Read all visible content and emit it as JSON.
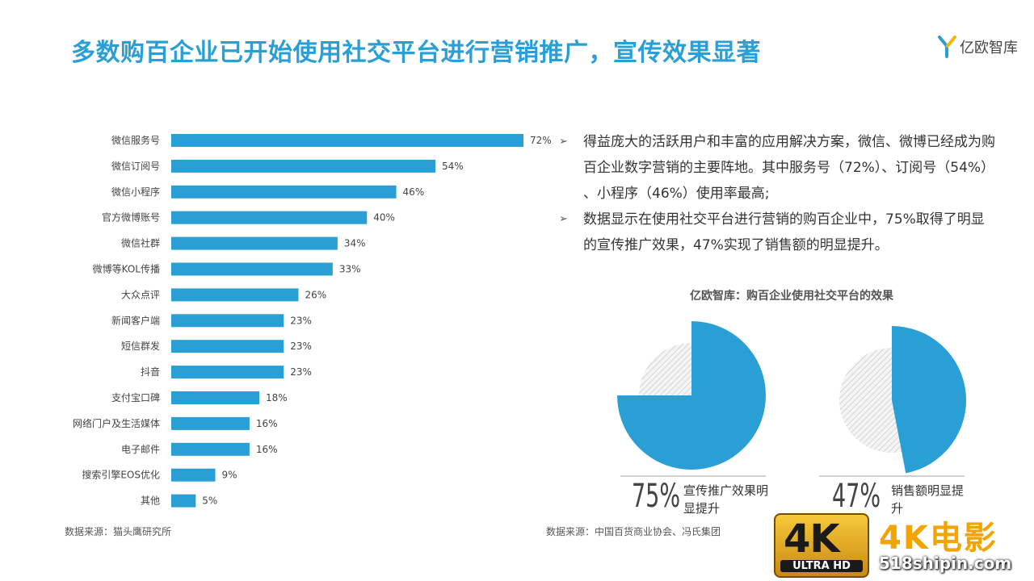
{
  "header": {
    "title": "多数购百企业已开始使用社交平台进行营销推广，宣传效果显著",
    "logo_text": "亿欧智库"
  },
  "colors": {
    "accent": "#2a9fd6",
    "bar": "#2a9fd6",
    "pie_rest": "#e6e6e6"
  },
  "chart_data": [
    {
      "type": "bar",
      "orientation": "horizontal",
      "categories": [
        "微信服务号",
        "微信订阅号",
        "微信小程序",
        "官方微博账号",
        "微信社群",
        "微博等KOL传播",
        "大众点评",
        "新闻客户端",
        "短信群发",
        "抖音",
        "支付宝口碑",
        "网络门户及生活媒体",
        "电子邮件",
        "搜索引擎EOS优化",
        "其他"
      ],
      "values": [
        72,
        54,
        46,
        40,
        34,
        33,
        26,
        23,
        23,
        23,
        18,
        16,
        16,
        9,
        5
      ],
      "value_labels": [
        "72%",
        "54%",
        "46%",
        "40%",
        "34%",
        "33%",
        "26%",
        "23%",
        "23%",
        "23%",
        "18%",
        "16%",
        "16%",
        "9%",
        "5%"
      ],
      "unit": "%",
      "xlim": [
        0,
        72
      ]
    },
    {
      "type": "pie",
      "title": "亿欧智库：购百企业使用社交平台的效果",
      "slices": [
        {
          "label": "宣传推广效果明显提升",
          "value": 75,
          "display": "75%"
        },
        {
          "label": "销售额明显提升",
          "value": 47,
          "display": "47%"
        }
      ]
    }
  ],
  "bullets": [
    "得益庞大的活跃用户和丰富的应用解决方案，微信、微博已经成为购百企业数字营销的主要阵地。其中服务号（72%）、订阅号（54%） 、小程序（46%）使用率最高;",
    "数据显示在使用社交平台进行营销的购百企业中，75%取得了明显的宣传推广效果，47%实现了销售额的明显提升。"
  ],
  "bullet_icon": "arrow-right-icon",
  "pies": {
    "left": {
      "pct": "75%",
      "desc": "宣传推广效果明显提升"
    },
    "right": {
      "pct": "47%",
      "desc": "销售额明显提升"
    }
  },
  "sources": {
    "left": "数据来源：猫头鹰研究所",
    "right": "数据来源：中国百货商业协会、冯氏集团"
  },
  "watermark": {
    "badge": "4K",
    "badge_sub": "ULTRA HD",
    "title": "4K电影",
    "url": "518shipin.com"
  }
}
